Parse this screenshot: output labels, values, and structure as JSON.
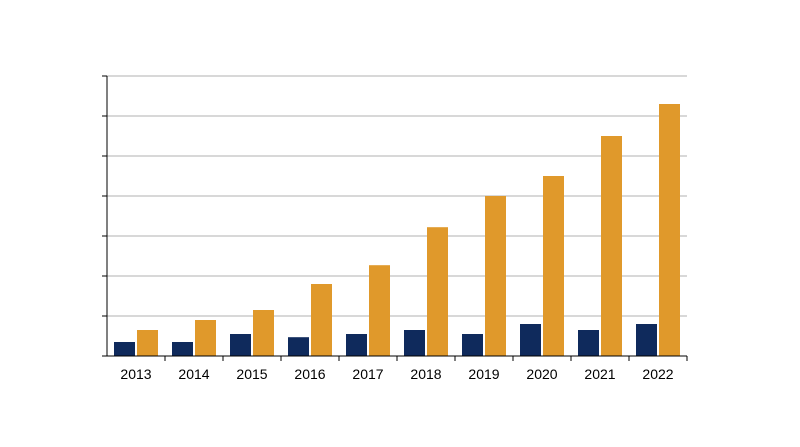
{
  "chart_data": {
    "type": "bar",
    "categories": [
      "2013",
      "2014",
      "2015",
      "2016",
      "2017",
      "2018",
      "2019",
      "2020",
      "2021",
      "2022"
    ],
    "series": [
      {
        "values": [
          0.35,
          0.35,
          0.55,
          0.47,
          0.55,
          0.65,
          0.55,
          0.8,
          0.65,
          0.8
        ]
      },
      {
        "values": [
          0.65,
          0.9,
          1.15,
          1.8,
          2.27,
          3.22,
          4.0,
          4.5,
          5.5,
          6.3
        ]
      }
    ],
    "ylim": [
      0,
      7
    ],
    "y_gridlines": 7,
    "y_tick_labels_shown": false,
    "grid": true,
    "colors": {
      "series_1": "#0f2a5c",
      "series_2": "#e0992b",
      "gridline": "#b0b0b0",
      "axis": "#000000"
    }
  }
}
